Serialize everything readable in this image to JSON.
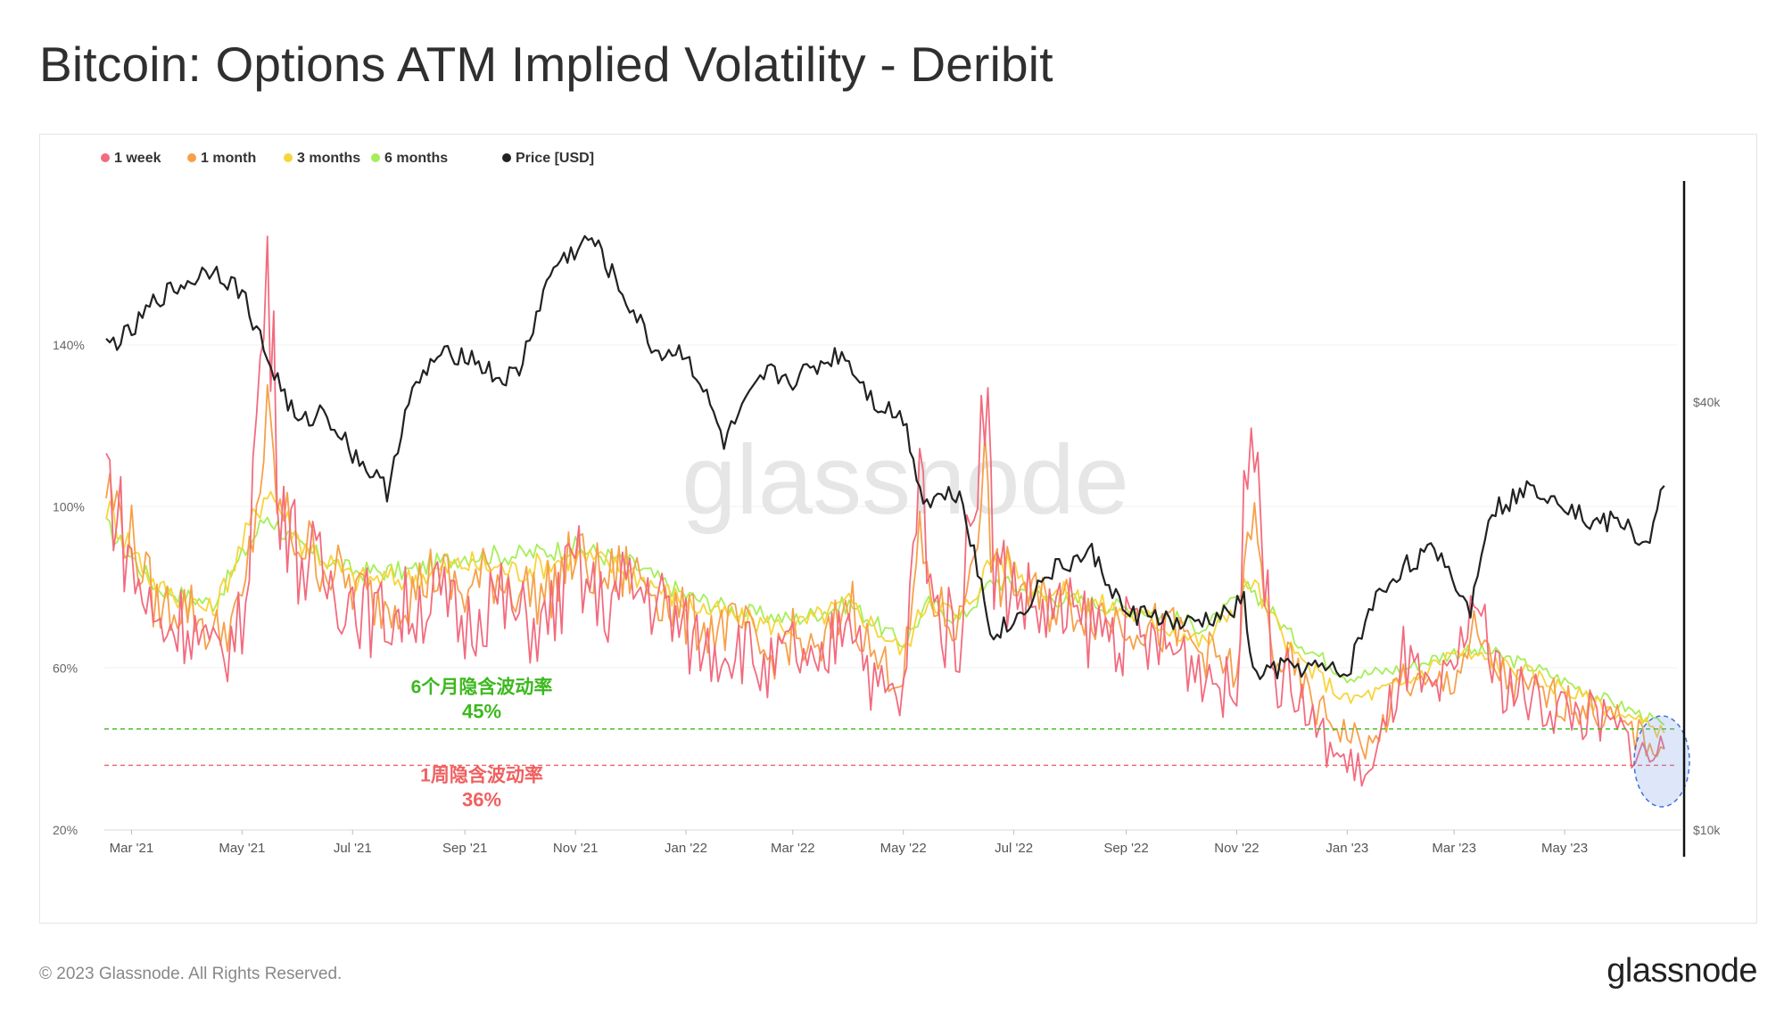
{
  "title": "Bitcoin: Options ATM Implied Volatility - Deribit",
  "footer": {
    "copyright": "© 2023 Glassnode. All Rights Reserved.",
    "logo": "glassnode"
  },
  "watermark": "glassnode",
  "colors": {
    "one_week": "#f26b7f",
    "one_month": "#f7a04a",
    "three_months": "#f8d43b",
    "six_months": "#a6ee58",
    "price": "#222222",
    "six_month_ref": "#3cb81e",
    "one_week_ref": "#f06060"
  },
  "chart_data": {
    "type": "line",
    "x_ticks": [
      "Mar '21",
      "May '21",
      "Jul '21",
      "Sep '21",
      "Nov '21",
      "Jan '22",
      "Mar '22",
      "May '22",
      "Jul '22",
      "Sep '22",
      "Nov '22",
      "Jan '23",
      "Mar '23",
      "May '23"
    ],
    "y_left_ticks": [
      "20%",
      "60%",
      "100%",
      "140%"
    ],
    "y_right_ticks": [
      "$10k",
      "$40k"
    ],
    "y_left_scale": "linear",
    "y_right_scale": "log",
    "x_range": [
      "2021-02-14",
      "2023-07-02"
    ],
    "legend": [
      "1 week",
      "1 month",
      "3 months",
      "6 months",
      "Price [USD]"
    ],
    "legend_position": "top-left",
    "series": [
      {
        "name": "1 week",
        "axis": "left",
        "unit": "%",
        "x": [
          "2021-02-15",
          "2021-03-01",
          "2021-03-15",
          "2021-04-01",
          "2021-04-15",
          "2021-05-01",
          "2021-05-15",
          "2021-05-22",
          "2021-06-01",
          "2021-06-15",
          "2021-07-01",
          "2021-07-15",
          "2021-08-01",
          "2021-08-15",
          "2021-09-01",
          "2021-09-15",
          "2021-10-01",
          "2021-10-15",
          "2021-11-01",
          "2021-11-15",
          "2021-12-01",
          "2021-12-15",
          "2022-01-01",
          "2022-01-15",
          "2022-02-01",
          "2022-02-15",
          "2022-03-01",
          "2022-03-15",
          "2022-04-01",
          "2022-04-15",
          "2022-05-01",
          "2022-05-10",
          "2022-05-20",
          "2022-06-01",
          "2022-06-15",
          "2022-06-20",
          "2022-07-01",
          "2022-07-15",
          "2022-08-01",
          "2022-08-15",
          "2022-09-01",
          "2022-09-15",
          "2022-10-01",
          "2022-10-15",
          "2022-11-01",
          "2022-11-09",
          "2022-11-20",
          "2022-12-01",
          "2022-12-15",
          "2023-01-01",
          "2023-01-15",
          "2023-02-01",
          "2023-02-15",
          "2023-03-01",
          "2023-03-12",
          "2023-03-20",
          "2023-04-01",
          "2023-04-15",
          "2023-05-01",
          "2023-05-15",
          "2023-06-01",
          "2023-06-15",
          "2023-06-25"
        ],
        "values": [
          110,
          85,
          70,
          72,
          62,
          70,
          158,
          105,
          88,
          82,
          78,
          72,
          75,
          78,
          70,
          78,
          72,
          70,
          85,
          75,
          80,
          78,
          68,
          65,
          66,
          58,
          65,
          56,
          78,
          55,
          52,
          108,
          72,
          68,
          135,
          85,
          80,
          74,
          72,
          70,
          68,
          66,
          64,
          60,
          52,
          140,
          60,
          56,
          44,
          36,
          34,
          62,
          52,
          56,
          80,
          62,
          55,
          52,
          50,
          48,
          44,
          38,
          40
        ]
      },
      {
        "name": "1 month",
        "axis": "left",
        "unit": "%",
        "x": [
          "2021-02-15",
          "2021-03-01",
          "2021-03-15",
          "2021-04-01",
          "2021-04-15",
          "2021-05-01",
          "2021-05-15",
          "2021-05-22",
          "2021-06-01",
          "2021-06-15",
          "2021-07-01",
          "2021-07-15",
          "2021-08-01",
          "2021-08-15",
          "2021-09-01",
          "2021-09-15",
          "2021-10-01",
          "2021-10-15",
          "2021-11-01",
          "2021-11-15",
          "2021-12-01",
          "2021-12-15",
          "2022-01-01",
          "2022-01-15",
          "2022-02-01",
          "2022-02-15",
          "2022-03-01",
          "2022-03-15",
          "2022-04-01",
          "2022-04-15",
          "2022-05-01",
          "2022-05-10",
          "2022-05-20",
          "2022-06-01",
          "2022-06-15",
          "2022-06-20",
          "2022-07-01",
          "2022-07-15",
          "2022-08-01",
          "2022-08-15",
          "2022-09-01",
          "2022-09-15",
          "2022-10-01",
          "2022-10-15",
          "2022-11-01",
          "2022-11-09",
          "2022-11-20",
          "2022-12-01",
          "2022-12-15",
          "2023-01-01",
          "2023-01-15",
          "2023-02-01",
          "2023-02-15",
          "2023-03-01",
          "2023-03-12",
          "2023-03-20",
          "2023-04-01",
          "2023-04-15",
          "2023-05-01",
          "2023-05-15",
          "2023-06-01",
          "2023-06-15",
          "2023-06-25"
        ],
        "values": [
          105,
          92,
          75,
          76,
          68,
          74,
          120,
          98,
          92,
          86,
          80,
          76,
          78,
          84,
          78,
          84,
          80,
          78,
          88,
          82,
          84,
          80,
          72,
          70,
          70,
          62,
          68,
          62,
          78,
          62,
          58,
          90,
          74,
          70,
          110,
          82,
          82,
          76,
          76,
          74,
          72,
          70,
          68,
          64,
          58,
          100,
          64,
          60,
          50,
          44,
          40,
          58,
          54,
          58,
          68,
          62,
          56,
          54,
          52,
          50,
          46,
          42,
          40
        ]
      },
      {
        "name": "3 months",
        "axis": "left",
        "unit": "%",
        "x": [
          "2021-02-15",
          "2021-03-15",
          "2021-04-15",
          "2021-05-15",
          "2021-06-01",
          "2021-07-01",
          "2021-08-01",
          "2021-09-01",
          "2021-10-01",
          "2021-11-01",
          "2021-12-01",
          "2022-01-01",
          "2022-02-01",
          "2022-03-01",
          "2022-04-01",
          "2022-05-01",
          "2022-05-15",
          "2022-06-01",
          "2022-06-20",
          "2022-07-15",
          "2022-08-15",
          "2022-09-15",
          "2022-10-15",
          "2022-11-09",
          "2022-12-01",
          "2023-01-01",
          "2023-02-01",
          "2023-03-01",
          "2023-03-20",
          "2023-04-15",
          "2023-05-15",
          "2023-06-15",
          "2023-06-25"
        ],
        "values": [
          100,
          80,
          74,
          105,
          92,
          82,
          82,
          86,
          84,
          88,
          84,
          76,
          72,
          70,
          76,
          64,
          78,
          72,
          88,
          80,
          76,
          72,
          66,
          82,
          64,
          52,
          56,
          64,
          62,
          58,
          52,
          46,
          44
        ]
      },
      {
        "name": "6 months",
        "axis": "left",
        "unit": "%",
        "x": [
          "2021-02-15",
          "2021-03-15",
          "2021-04-15",
          "2021-05-15",
          "2021-06-01",
          "2021-07-01",
          "2021-08-01",
          "2021-09-01",
          "2021-10-01",
          "2021-11-01",
          "2021-12-01",
          "2022-01-01",
          "2022-02-01",
          "2022-03-01",
          "2022-04-01",
          "2022-05-01",
          "2022-05-15",
          "2022-06-01",
          "2022-06-20",
          "2022-07-15",
          "2022-08-15",
          "2022-09-15",
          "2022-10-15",
          "2022-11-09",
          "2022-12-01",
          "2023-01-01",
          "2023-02-01",
          "2023-03-01",
          "2023-03-20",
          "2023-04-15",
          "2023-05-15",
          "2023-06-15",
          "2023-06-25"
        ],
        "values": [
          95,
          80,
          76,
          98,
          90,
          84,
          84,
          88,
          88,
          90,
          86,
          78,
          74,
          72,
          76,
          66,
          76,
          72,
          82,
          78,
          76,
          74,
          70,
          80,
          68,
          58,
          60,
          64,
          64,
          60,
          54,
          48,
          46
        ]
      },
      {
        "name": "Price [USD]",
        "axis": "right",
        "unit": "USD",
        "x": [
          "2021-02-15",
          "2021-03-01",
          "2021-03-15",
          "2021-04-01",
          "2021-04-15",
          "2021-05-01",
          "2021-05-15",
          "2021-06-01",
          "2021-06-15",
          "2021-07-01",
          "2021-07-20",
          "2021-08-01",
          "2021-08-15",
          "2021-09-01",
          "2021-09-20",
          "2021-10-01",
          "2021-10-20",
          "2021-11-10",
          "2021-11-25",
          "2021-12-15",
          "2022-01-01",
          "2022-01-22",
          "2022-02-15",
          "2022-03-01",
          "2022-03-28",
          "2022-04-15",
          "2022-05-01",
          "2022-05-12",
          "2022-06-01",
          "2022-06-13",
          "2022-06-18",
          "2022-07-01",
          "2022-07-20",
          "2022-08-13",
          "2022-09-01",
          "2022-09-15",
          "2022-10-01",
          "2022-10-25",
          "2022-11-05",
          "2022-11-10",
          "2022-12-01",
          "2022-12-20",
          "2023-01-01",
          "2023-01-15",
          "2023-02-01",
          "2023-02-20",
          "2023-03-10",
          "2023-03-20",
          "2023-04-14",
          "2023-05-01",
          "2023-05-15",
          "2023-06-01",
          "2023-06-15",
          "2023-06-25"
        ],
        "values": [
          48000,
          50000,
          56000,
          59000,
          62000,
          57000,
          46000,
          37000,
          39000,
          34000,
          30000,
          40000,
          46000,
          47000,
          43000,
          44000,
          62000,
          68000,
          58000,
          47000,
          47000,
          35000,
          44000,
          43000,
          47000,
          40000,
          38000,
          29000,
          30000,
          22000,
          19000,
          19500,
          23000,
          24500,
          20000,
          20200,
          19300,
          20000,
          21000,
          16500,
          17000,
          16800,
          16500,
          20800,
          23500,
          24800,
          20200,
          28000,
          30400,
          29000,
          27000,
          27200,
          25000,
          30500
        ]
      }
    ],
    "reference_lines": [
      {
        "label_line1": "6个月隐含波动率",
        "label_line2": "45%",
        "value": 45
      },
      {
        "label_line1": "1周隐含波动率",
        "label_line2": "36%",
        "value": 36
      }
    ]
  }
}
